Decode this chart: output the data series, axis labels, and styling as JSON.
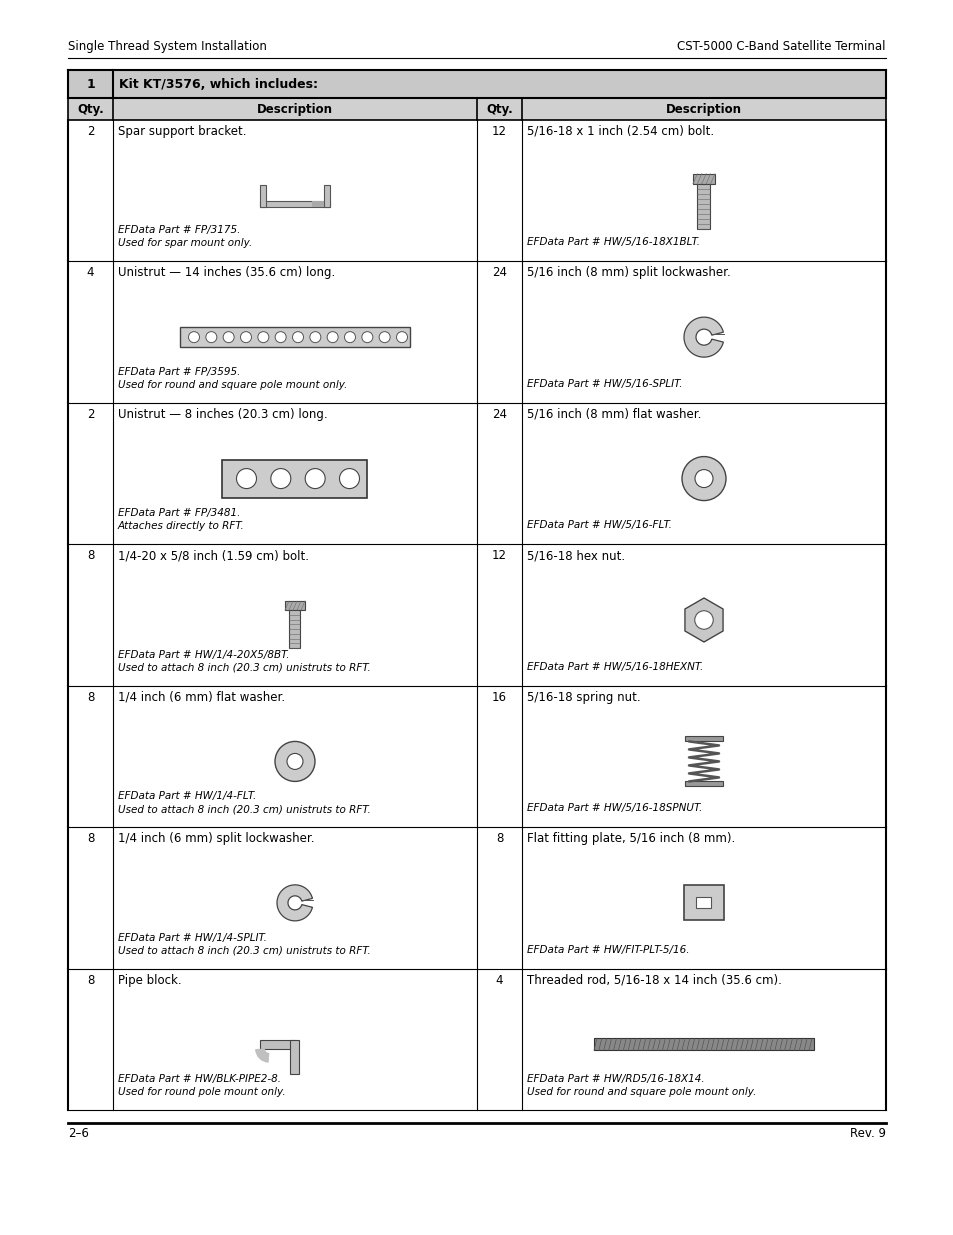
{
  "page_header_left": "Single Thread System Installation",
  "page_header_right": "CST-5000 C-Band Satellite Terminal",
  "page_footer_left": "2–6",
  "page_footer_right": "Rev. 9",
  "table_title": "Kit KT/3576, which includes:",
  "header_qty": "Qty.",
  "header_desc": "Description",
  "bg_color": "#ffffff",
  "left_rows": [
    {
      "qty": "2",
      "desc": "Spar support bracket.",
      "part": "EFData Part # FP/3175.",
      "note": "Used for spar mount only."
    },
    {
      "qty": "4",
      "desc": "Unistrut — 14 inches (35.6 cm) long.",
      "part": "EFData Part # FP/3595.",
      "note": "Used for round and square pole mount only."
    },
    {
      "qty": "2",
      "desc": "Unistrut — 8 inches (20.3 cm) long.",
      "part": "EFData Part # FP/3481.",
      "note": "Attaches directly to RFT."
    },
    {
      "qty": "8",
      "desc": "1/4-20 x 5/8 inch (1.59 cm) bolt.",
      "part": "EFData Part # HW/1/4-20X5/8BT.",
      "note": "Used to attach 8 inch (20.3 cm) unistruts to RFT."
    },
    {
      "qty": "8",
      "desc": "1/4 inch (6 mm) flat washer.",
      "part": "EFData Part # HW/1/4-FLT.",
      "note": "Used to attach 8 inch (20.3 cm) unistruts to RFT."
    },
    {
      "qty": "8",
      "desc": "1/4 inch (6 mm) split lockwasher.",
      "part": "EFData Part # HW/1/4-SPLIT.",
      "note": "Used to attach 8 inch (20.3 cm) unistruts to RFT."
    },
    {
      "qty": "8",
      "desc": "Pipe block.",
      "part": "EFData Part # HW/BLK-PIPE2-8.",
      "note": "Used for round pole mount only."
    }
  ],
  "right_rows": [
    {
      "qty": "12",
      "desc": "5/16-18 x 1 inch (2.54 cm) bolt.",
      "part": "EFData Part # HW/5/16-18X1BLT.",
      "note": ""
    },
    {
      "qty": "24",
      "desc": "5/16 inch (8 mm) split lockwasher.",
      "part": "EFData Part # HW/5/16-SPLIT.",
      "note": ""
    },
    {
      "qty": "24",
      "desc": "5/16 inch (8 mm) flat washer.",
      "part": "EFData Part # HW/5/16-FLT.",
      "note": ""
    },
    {
      "qty": "12",
      "desc": "5/16-18 hex nut.",
      "part": "EFData Part # HW/5/16-18HEXNT.",
      "note": ""
    },
    {
      "qty": "16",
      "desc": "5/16-18 spring nut.",
      "part": "EFData Part # HW/5/16-18SPNUT.",
      "note": ""
    },
    {
      "qty": "8",
      "desc": "Flat fitting plate, 5/16 inch (8 mm).",
      "part": "EFData Part # HW/FIT-PLT-5/16.",
      "note": ""
    },
    {
      "qty": "4",
      "desc": "Threaded rod, 5/16-18 x 14 inch (35.6 cm).",
      "part": "EFData Part # HW/RD5/16-18X14.",
      "note": "Used for round and square pole mount only."
    }
  ]
}
